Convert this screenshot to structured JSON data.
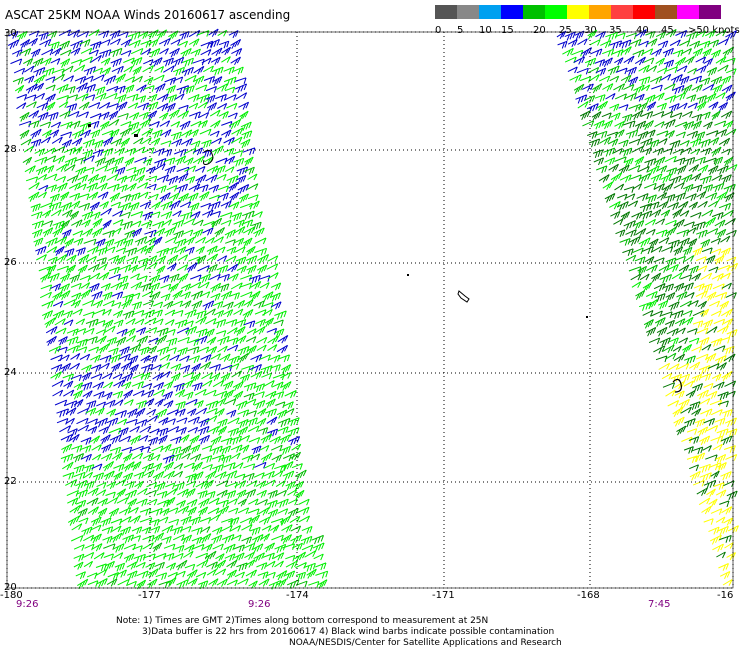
{
  "title": "ASCAT 25KM NOAA Winds 20160617 ascending",
  "legend": {
    "colors": [
      "#555555",
      "#888888",
      "#00a0f0",
      "#0000ff",
      "#00c000",
      "#00ff00",
      "#ffff00",
      "#ffa500",
      "#ff4040",
      "#ff0000",
      "#a05020",
      "#ff00ff",
      "#800080"
    ],
    "labels": [
      "0",
      "5",
      "10",
      "15",
      "20",
      "25",
      "30",
      "35",
      "40",
      "45",
      ">50 knots"
    ]
  },
  "axes": {
    "x_ticks": [
      "-180",
      "-177",
      "-174",
      "-171",
      "-168",
      "-16"
    ],
    "y_ticks": [
      "30",
      "28",
      "26",
      "24",
      "22",
      "20"
    ]
  },
  "pass_times": [
    "9:26",
    "9:26",
    "7:45"
  ],
  "notes": {
    "line1": "Note: 1) Times are GMT 2)Times along bottom correspond to measurement at 25N",
    "line2": "3)Data buffer is 22 hrs from 20160617 4) Black wind barbs indicate possible contamination",
    "line3": "NOAA/NESDIS/Center for Satellite Applications and Research"
  },
  "wind_colors": {
    "blue": "#0000cc",
    "light_green": "#00ee00",
    "green": "#00bb00",
    "dark_green": "#007700",
    "yellow": "#ffff00"
  }
}
